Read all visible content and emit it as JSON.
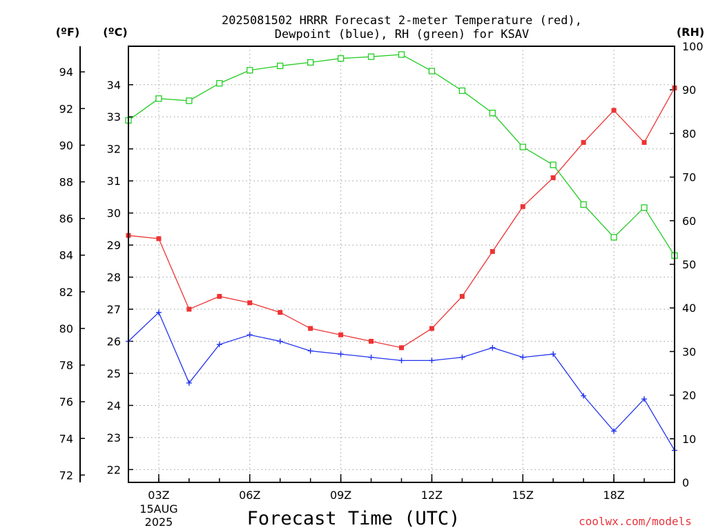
{
  "chart_data": {
    "type": "line",
    "title": "2025081502 HRRR Forecast 2-meter Temperature (red),",
    "subtitle": "Dewpoint (blue), RH (green) for KSAV",
    "xlabel": "Forecast Time (UTC)",
    "watermark": "coolwx.com/models",
    "units": {
      "fahrenheit": "(ºF)",
      "celsius": "(ºC)",
      "rh": "(RH)"
    },
    "x_ticks": [
      "03Z",
      "06Z",
      "09Z",
      "12Z",
      "15Z",
      "18Z"
    ],
    "date_label": [
      "15AUG",
      "2025"
    ],
    "x": [
      2,
      3,
      4,
      5,
      6,
      7,
      8,
      9,
      10,
      11,
      12,
      13,
      14,
      15,
      16,
      17,
      18,
      19,
      20
    ],
    "xlim": [
      2,
      20
    ],
    "axes": {
      "fahrenheit": {
        "ticks": [
          "94",
          "92",
          "90",
          "88",
          "86",
          "84",
          "82",
          "80",
          "78",
          "76",
          "74",
          "72"
        ],
        "values": [
          94,
          92,
          90,
          88,
          86,
          84,
          82,
          80,
          78,
          76,
          74,
          72
        ],
        "range": [
          71.6,
          95.4
        ]
      },
      "celsius": {
        "ticks": [
          "34",
          "33",
          "32",
          "31",
          "30",
          "29",
          "28",
          "27",
          "26",
          "25",
          "24",
          "23",
          "22"
        ],
        "values": [
          34,
          33,
          32,
          31,
          30,
          29,
          28,
          27,
          26,
          25,
          24,
          23,
          22
        ],
        "range": [
          21.6,
          35.2
        ]
      },
      "rh": {
        "ticks": [
          "100",
          "90",
          "80",
          "70",
          "60",
          "50",
          "40",
          "30",
          "20",
          "10",
          "0"
        ],
        "values": [
          100,
          90,
          80,
          70,
          60,
          50,
          40,
          30,
          20,
          10,
          0
        ],
        "range": [
          0,
          100
        ]
      }
    },
    "grid": true,
    "series": [
      {
        "name": "Temperature",
        "axis": "celsius",
        "color": "#ee3333",
        "marker": "filled-square",
        "values": [
          29.3,
          29.2,
          27.0,
          27.4,
          27.2,
          26.9,
          26.4,
          26.2,
          26.0,
          25.8,
          26.4,
          27.4,
          28.8,
          30.2,
          31.1,
          32.2,
          33.2,
          32.2,
          33.9
        ]
      },
      {
        "name": "Dewpoint",
        "axis": "celsius",
        "color": "#2233ee",
        "marker": "plus",
        "values": [
          26.0,
          26.9,
          24.7,
          25.9,
          26.2,
          26.0,
          25.7,
          25.6,
          25.5,
          25.4,
          25.4,
          25.5,
          25.8,
          25.5,
          25.6,
          24.3,
          23.2,
          24.2,
          22.6
        ]
      },
      {
        "name": "RH",
        "axis": "rh",
        "color": "#22cc22",
        "marker": "open-square",
        "values": [
          83,
          88,
          87.5,
          91.5,
          94.5,
          95.5,
          96.3,
          97.2,
          97.6,
          98.1,
          94.3,
          89.8,
          84.7,
          76.9,
          72.8,
          63.7,
          56.2,
          63,
          52
        ]
      }
    ]
  }
}
